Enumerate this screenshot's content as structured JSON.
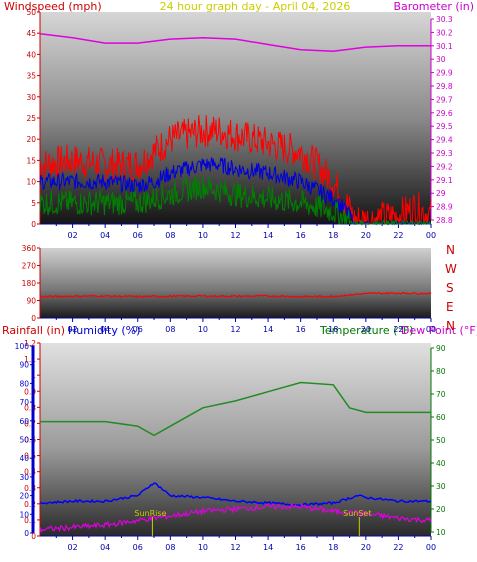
{
  "header": {
    "left_title": "Windspeed (mph)",
    "center_title": "24 hour graph day - April 04, 2026",
    "right_title": "Barometer (in)"
  },
  "middle_panel": {
    "direction_letters": [
      "N",
      "W",
      "S",
      "E",
      "N"
    ]
  },
  "bottom_header": {
    "rainfall_label": "Rainfall (in)",
    "humidity_label": "Humidity (%)",
    "temperature_label": "Temperature (°F)",
    "dewpoint_label": "Dew Point (°F)"
  },
  "events": {
    "sunrise_label": "SunRise",
    "sunset_label": "SunSet"
  },
  "colors": {
    "wind_max": "#ff0000",
    "wind_avg": "#0000dd",
    "wind_low": "#008000",
    "barometer": "#e000e0",
    "direction": "#ff0000",
    "temperature": "#228b22",
    "humidity": "#0000ff",
    "dewpoint": "#e000e0",
    "axis_left_top": "#cc0000",
    "axis_right_top": "#cc00cc",
    "axis_rain": "#cc0000",
    "axis_humidity": "#0000cc",
    "axis_temp": "#007700",
    "time_axis": "#0000aa",
    "title_center": "#cccc00"
  },
  "chart_data": [
    {
      "type": "line",
      "panel": "wind",
      "xlabel": "",
      "x_ticks": [
        "02",
        "04",
        "06",
        "08",
        "10",
        "12",
        "14",
        "16",
        "18",
        "20",
        "22",
        "00"
      ],
      "ylim_left": [
        0,
        50
      ],
      "yticks_left": [
        0,
        5,
        10,
        15,
        20,
        25,
        30,
        35,
        40,
        45,
        50
      ],
      "ylim_right": [
        28.8,
        30.3
      ],
      "yticks_right": [
        28.8,
        28.9,
        29,
        29.1,
        29.2,
        29.3,
        29.4,
        29.5,
        29.6,
        29.7,
        29.8,
        29.9,
        30,
        30.1,
        30.2,
        30.3
      ],
      "hours": [
        0,
        2,
        4,
        6,
        7,
        8,
        10,
        11,
        12,
        14,
        16,
        17,
        18,
        18.8,
        19.3,
        20,
        22,
        23,
        24
      ],
      "wind_gust": [
        14,
        15,
        14,
        14,
        17,
        20,
        22,
        22,
        21,
        19,
        17,
        14,
        10,
        5,
        1,
        1,
        2,
        4,
        2
      ],
      "wind_avg": [
        10,
        10,
        10,
        9,
        10,
        12,
        14,
        14,
        13,
        12,
        10,
        8,
        6,
        3,
        0,
        0,
        0,
        0,
        0
      ],
      "wind_low": [
        5,
        5,
        5,
        5,
        6,
        7,
        9,
        8,
        7,
        6,
        5,
        4,
        3,
        1,
        0,
        0,
        0,
        0,
        0
      ],
      "barometer_x": [
        0,
        2,
        4,
        6,
        8,
        10,
        12,
        14,
        16,
        18,
        20,
        22,
        24
      ],
      "barometer": [
        30.19,
        30.16,
        30.12,
        30.12,
        30.15,
        30.16,
        30.15,
        30.11,
        30.07,
        30.06,
        30.09,
        30.1,
        30.1
      ]
    },
    {
      "type": "line",
      "panel": "wind_direction",
      "ylim": [
        0,
        360
      ],
      "yticks": [
        0,
        90,
        180,
        270,
        360
      ],
      "hours": [
        0,
        2,
        4,
        6,
        8,
        10,
        12,
        14,
        16,
        18,
        20,
        22,
        24
      ],
      "direction": [
        110,
        112,
        113,
        110,
        112,
        113,
        112,
        113,
        110,
        111,
        126,
        128,
        126
      ]
    },
    {
      "type": "line",
      "panel": "temp_hum",
      "ylim_rain": [
        0,
        1.2
      ],
      "yticks_rain": [
        0,
        0.1,
        0.2,
        0.3,
        0.4,
        0.5,
        0.6,
        0.7,
        0.8,
        0.9,
        1,
        1.1,
        1.2
      ],
      "ylim_humidity": [
        0,
        100
      ],
      "yticks_humidity": [
        0,
        10,
        20,
        30,
        40,
        50,
        60,
        70,
        80,
        90,
        100
      ],
      "ylim_temp": [
        10,
        90
      ],
      "yticks_temp": [
        10,
        20,
        30,
        40,
        50,
        60,
        70,
        80,
        90
      ],
      "hours": [
        0,
        2,
        4,
        6,
        7,
        8,
        10,
        12,
        14,
        16,
        18,
        19,
        20,
        22,
        24
      ],
      "temperature": [
        58,
        58,
        58,
        56,
        52,
        56,
        64,
        67,
        71,
        75,
        74,
        64,
        62,
        62,
        62
      ],
      "humidity_x": [
        0,
        2,
        4,
        6,
        7,
        8,
        10,
        12,
        14,
        16,
        18,
        19.5,
        20,
        22,
        24
      ],
      "humidity": [
        16,
        17,
        17,
        20,
        27,
        20,
        19,
        17,
        16,
        15,
        16,
        20,
        19,
        17,
        17
      ],
      "dewpoint_x": [
        0,
        2,
        4,
        6,
        8,
        10,
        12,
        14,
        16,
        18,
        20,
        22,
        24
      ],
      "dewpoint": [
        11,
        12,
        13,
        15,
        17,
        19,
        20,
        21,
        21,
        19,
        18,
        16,
        15
      ],
      "sunrise_hour": 6.9,
      "sunset_hour": 19.6
    }
  ]
}
